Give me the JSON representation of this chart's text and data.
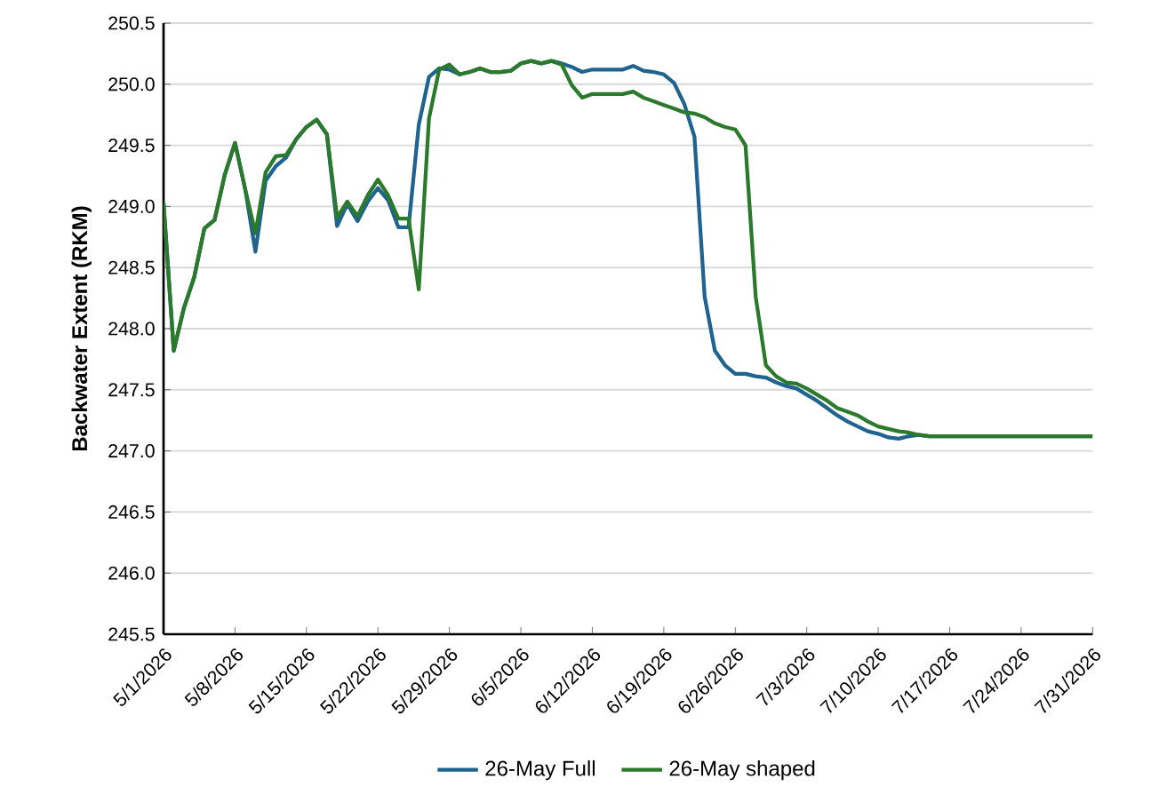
{
  "chart_data": {
    "type": "line",
    "ylabel": "Backwater Extent (RKM)",
    "x": [
      "2026-05-01",
      "2026-05-02",
      "2026-05-03",
      "2026-05-04",
      "2026-05-05",
      "2026-05-06",
      "2026-05-07",
      "2026-05-08",
      "2026-05-09",
      "2026-05-10",
      "2026-05-11",
      "2026-05-12",
      "2026-05-13",
      "2026-05-14",
      "2026-05-15",
      "2026-05-16",
      "2026-05-17",
      "2026-05-18",
      "2026-05-19",
      "2026-05-20",
      "2026-05-21",
      "2026-05-22",
      "2026-05-23",
      "2026-05-24",
      "2026-05-25",
      "2026-05-26",
      "2026-05-27",
      "2026-05-28",
      "2026-05-29",
      "2026-05-30",
      "2026-05-31",
      "2026-06-01",
      "2026-06-02",
      "2026-06-03",
      "2026-06-04",
      "2026-06-05",
      "2026-06-06",
      "2026-06-07",
      "2026-06-08",
      "2026-06-09",
      "2026-06-10",
      "2026-06-11",
      "2026-06-12",
      "2026-06-13",
      "2026-06-14",
      "2026-06-15",
      "2026-06-16",
      "2026-06-17",
      "2026-06-18",
      "2026-06-19",
      "2026-06-20",
      "2026-06-21",
      "2026-06-22",
      "2026-06-23",
      "2026-06-24",
      "2026-06-25",
      "2026-06-26",
      "2026-06-27",
      "2026-06-28",
      "2026-06-29",
      "2026-06-30",
      "2026-07-01",
      "2026-07-02",
      "2026-07-03",
      "2026-07-04",
      "2026-07-05",
      "2026-07-06",
      "2026-07-07",
      "2026-07-08",
      "2026-07-09",
      "2026-07-10",
      "2026-07-11",
      "2026-07-12",
      "2026-07-13",
      "2026-07-14",
      "2026-07-15",
      "2026-07-31"
    ],
    "series": [
      {
        "name": "26-May Full",
        "color": "#1f6391",
        "values": [
          249.03,
          247.82,
          248.17,
          248.42,
          248.82,
          248.89,
          249.26,
          249.52,
          249.14,
          248.63,
          249.21,
          249.33,
          249.4,
          249.55,
          249.65,
          249.71,
          249.59,
          248.84,
          249.02,
          248.88,
          249.04,
          249.15,
          249.05,
          248.83,
          248.83,
          249.67,
          250.06,
          250.13,
          250.12,
          250.08,
          250.1,
          250.13,
          250.1,
          250.1,
          250.11,
          250.17,
          250.19,
          250.17,
          250.19,
          250.17,
          250.14,
          250.1,
          250.12,
          250.12,
          250.12,
          250.12,
          250.15,
          250.11,
          250.1,
          250.08,
          250.01,
          249.84,
          249.57,
          248.26,
          247.82,
          247.7,
          247.63,
          247.63,
          247.61,
          247.6,
          247.56,
          247.53,
          247.51,
          247.46,
          247.41,
          247.35,
          247.29,
          247.24,
          247.2,
          247.16,
          247.14,
          247.11,
          247.1,
          247.12,
          247.13,
          247.12,
          247.12
        ]
      },
      {
        "name": "26-May shaped",
        "color": "#2b7a2b",
        "values": [
          249.03,
          247.82,
          248.17,
          248.42,
          248.82,
          248.89,
          249.26,
          249.52,
          249.14,
          248.78,
          249.28,
          249.41,
          249.42,
          249.55,
          249.65,
          249.71,
          249.59,
          248.91,
          249.04,
          248.92,
          249.09,
          249.22,
          249.09,
          248.9,
          248.9,
          248.32,
          249.72,
          250.12,
          250.16,
          250.08,
          250.1,
          250.13,
          250.1,
          250.1,
          250.11,
          250.17,
          250.19,
          250.17,
          250.19,
          250.16,
          249.99,
          249.89,
          249.92,
          249.92,
          249.92,
          249.92,
          249.94,
          249.89,
          249.86,
          249.83,
          249.8,
          249.77,
          249.76,
          249.73,
          249.68,
          249.65,
          249.63,
          249.5,
          248.26,
          247.7,
          247.61,
          247.56,
          247.55,
          247.51,
          247.46,
          247.41,
          247.35,
          247.32,
          247.29,
          247.24,
          247.2,
          247.18,
          247.16,
          247.15,
          247.13,
          247.12,
          247.12
        ]
      }
    ],
    "xlim": [
      "2026-05-01",
      "2026-07-31"
    ],
    "xticks": [
      {
        "value": "2026-05-01",
        "label": "5/1/2026"
      },
      {
        "value": "2026-05-08",
        "label": "5/8/2026"
      },
      {
        "value": "2026-05-15",
        "label": "5/15/2026"
      },
      {
        "value": "2026-05-22",
        "label": "5/22/2026"
      },
      {
        "value": "2026-05-29",
        "label": "5/29/2026"
      },
      {
        "value": "2026-06-05",
        "label": "6/5/2026"
      },
      {
        "value": "2026-06-12",
        "label": "6/12/2026"
      },
      {
        "value": "2026-06-19",
        "label": "6/19/2026"
      },
      {
        "value": "2026-06-26",
        "label": "6/26/2026"
      },
      {
        "value": "2026-07-03",
        "label": "7/3/2026"
      },
      {
        "value": "2026-07-10",
        "label": "7/10/2026"
      },
      {
        "value": "2026-07-17",
        "label": "7/17/2026"
      },
      {
        "value": "2026-07-24",
        "label": "7/24/2026"
      },
      {
        "value": "2026-07-31",
        "label": "7/31/2026"
      }
    ],
    "ylim": [
      245.5,
      250.5
    ],
    "yticks": [
      {
        "value": 245.5,
        "label": "245.5"
      },
      {
        "value": 246,
        "label": "246.0"
      },
      {
        "value": 246.5,
        "label": "246.5"
      },
      {
        "value": 247,
        "label": "247.0"
      },
      {
        "value": 247.5,
        "label": "247.5"
      },
      {
        "value": 248,
        "label": "248.0"
      },
      {
        "value": 248.5,
        "label": "248.5"
      },
      {
        "value": 249,
        "label": "249.0"
      },
      {
        "value": 249.5,
        "label": "249.5"
      },
      {
        "value": 250,
        "label": "250.0"
      },
      {
        "value": 250.5,
        "label": "250.5"
      }
    ],
    "grid": "y",
    "legend": "bottom"
  }
}
